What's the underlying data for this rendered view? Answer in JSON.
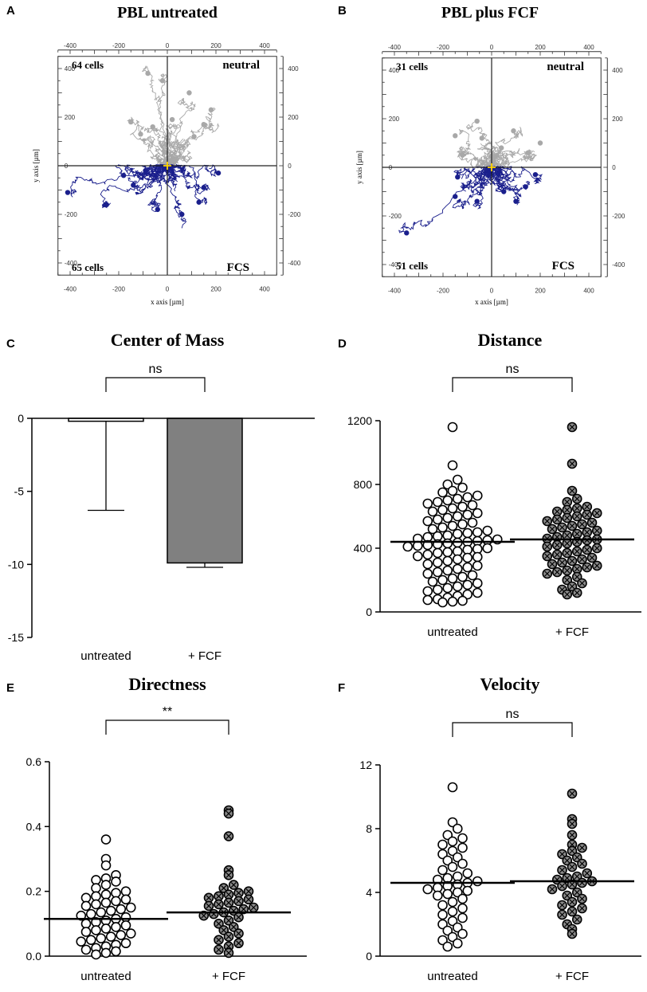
{
  "panels": {
    "A": {
      "letter": "A",
      "title": "PBL untreated",
      "top_left_count": "64 cells",
      "bottom_left_count": "65 cells",
      "top_right_label": "neutral",
      "bottom_right_label": "FCS",
      "xlabel": "x axis [µm]",
      "ylabel": "y axis [µm]"
    },
    "B": {
      "letter": "B",
      "title": "PBL plus FCF",
      "top_left_count": "31 cells",
      "bottom_left_count": "51 cells",
      "top_right_label": "neutral",
      "bottom_right_label": "FCS",
      "xlabel": "x axis [µm]",
      "ylabel": "y axis [µm]"
    },
    "C": {
      "letter": "C"
    },
    "D": {
      "letter": "D"
    },
    "E": {
      "letter": "E"
    },
    "F": {
      "letter": "F"
    }
  },
  "colors": {
    "neutral_tracks": "#a8a8a8",
    "fcs_tracks": "#1a1f8c",
    "bar_fcf": "#808080",
    "marker_fcf": "#8a8a8a",
    "center": "#ffd400"
  },
  "chart_data": [
    {
      "id": "A",
      "type": "scatter",
      "title": "PBL untreated",
      "xlabel": "x axis [µm]",
      "ylabel": "y axis [µm]",
      "xlim": [
        -450,
        450
      ],
      "ylim": [
        -450,
        450
      ],
      "xticks": [
        -400,
        -200,
        0,
        200,
        400
      ],
      "yticks": [
        -400,
        -200,
        0,
        200,
        400
      ],
      "series": [
        {
          "name": "neutral",
          "count": "64 cells",
          "endpoints": [
            [
              -80,
              380
            ],
            [
              -20,
              350
            ],
            [
              90,
              300
            ],
            [
              180,
              230
            ],
            [
              150,
              170
            ],
            [
              110,
              120
            ],
            [
              -150,
              180
            ],
            [
              -60,
              160
            ],
            [
              20,
              190
            ],
            [
              -110,
              130
            ]
          ]
        },
        {
          "name": "FCS",
          "count": "65 cells",
          "endpoints": [
            [
              -410,
              -110
            ],
            [
              -250,
              -160
            ],
            [
              -140,
              -80
            ],
            [
              -90,
              -20
            ],
            [
              210,
              -30
            ],
            [
              130,
              -150
            ],
            [
              60,
              -200
            ],
            [
              -40,
              -180
            ],
            [
              150,
              -90
            ],
            [
              -180,
              -40
            ]
          ]
        }
      ]
    },
    {
      "id": "B",
      "type": "scatter",
      "title": "PBL plus FCF",
      "xlabel": "x axis [µm]",
      "ylabel": "y axis [µm]",
      "xlim": [
        -450,
        450
      ],
      "ylim": [
        -450,
        450
      ],
      "xticks": [
        -400,
        -200,
        0,
        200,
        400
      ],
      "yticks": [
        -400,
        -200,
        0,
        200,
        400
      ],
      "series": [
        {
          "name": "neutral",
          "count": "31 cells",
          "endpoints": [
            [
              -150,
              130
            ],
            [
              -60,
              190
            ],
            [
              90,
              150
            ],
            [
              200,
              100
            ],
            [
              -120,
              50
            ],
            [
              40,
              80
            ],
            [
              150,
              60
            ],
            [
              -40,
              120
            ]
          ]
        },
        {
          "name": "FCS",
          "count": "51 cells",
          "endpoints": [
            [
              -350,
              -270
            ],
            [
              -150,
              -120
            ],
            [
              50,
              -100
            ],
            [
              180,
              -30
            ],
            [
              100,
              -140
            ],
            [
              -60,
              -140
            ],
            [
              140,
              -80
            ],
            [
              -140,
              -40
            ]
          ]
        }
      ]
    },
    {
      "id": "C",
      "type": "bar",
      "title": "Center of Mass",
      "categories": [
        "untreated",
        "+ FCF"
      ],
      "values": [
        -0.2,
        -9.9
      ],
      "errors": [
        6.1,
        0.3
      ],
      "ylim": [
        -15,
        0
      ],
      "yticks": [
        0,
        -5,
        -10,
        -15
      ],
      "significance": "ns"
    },
    {
      "id": "D",
      "type": "scatter",
      "title": "Distance",
      "categories": [
        "untreated",
        "+ FCF"
      ],
      "medians": [
        440,
        455
      ],
      "ylim": [
        0,
        1200
      ],
      "yticks": [
        0,
        400,
        800,
        1200
      ],
      "significance": "ns",
      "series": [
        {
          "name": "untreated",
          "values": [
            1160,
            920,
            830,
            800,
            780,
            760,
            750,
            730,
            720,
            710,
            700,
            690,
            680,
            670,
            660,
            650,
            640,
            630,
            620,
            610,
            600,
            590,
            580,
            570,
            560,
            550,
            540,
            530,
            520,
            510,
            500,
            495,
            490,
            480,
            475,
            470,
            460,
            455,
            450,
            445,
            440,
            435,
            430,
            425,
            420,
            415,
            410,
            400,
            395,
            390,
            380,
            375,
            370,
            360,
            350,
            345,
            340,
            330,
            320,
            310,
            300,
            290,
            280,
            270,
            260,
            250,
            240,
            230,
            220,
            210,
            200,
            190,
            180,
            170,
            160,
            150,
            140,
            130,
            120,
            110,
            100,
            90,
            80,
            75,
            70,
            65,
            60
          ]
        },
        {
          "name": "+ FCF",
          "values": [
            1160,
            930,
            760,
            710,
            690,
            660,
            650,
            640,
            630,
            620,
            610,
            600,
            590,
            580,
            570,
            560,
            550,
            540,
            530,
            520,
            510,
            500,
            490,
            480,
            470,
            460,
            455,
            450,
            440,
            430,
            420,
            410,
            400,
            390,
            380,
            370,
            360,
            350,
            340,
            330,
            320,
            310,
            300,
            290,
            280,
            270,
            260,
            250,
            240,
            220,
            200,
            180,
            160,
            140,
            120,
            110
          ]
        }
      ]
    },
    {
      "id": "E",
      "type": "scatter",
      "title": "Directness",
      "categories": [
        "untreated",
        "+ FCF"
      ],
      "medians": [
        0.115,
        0.135
      ],
      "ylim": [
        0,
        0.6
      ],
      "yticks": [
        0.0,
        0.2,
        0.4,
        0.6
      ],
      "significance": "**",
      "series": [
        {
          "name": "untreated",
          "values": [
            0.36,
            0.3,
            0.28,
            0.25,
            0.24,
            0.235,
            0.23,
            0.22,
            0.21,
            0.2,
            0.195,
            0.19,
            0.185,
            0.18,
            0.175,
            0.17,
            0.165,
            0.16,
            0.155,
            0.15,
            0.145,
            0.14,
            0.135,
            0.13,
            0.125,
            0.12,
            0.115,
            0.11,
            0.105,
            0.1,
            0.095,
            0.09,
            0.085,
            0.08,
            0.075,
            0.07,
            0.065,
            0.06,
            0.055,
            0.05,
            0.045,
            0.04,
            0.035,
            0.03,
            0.025,
            0.02,
            0.015,
            0.01,
            0.005
          ]
        },
        {
          "name": "+ FCF",
          "values": [
            0.45,
            0.44,
            0.37,
            0.265,
            0.25,
            0.22,
            0.21,
            0.2,
            0.195,
            0.19,
            0.185,
            0.18,
            0.175,
            0.17,
            0.165,
            0.16,
            0.155,
            0.15,
            0.145,
            0.14,
            0.135,
            0.13,
            0.125,
            0.12,
            0.11,
            0.1,
            0.09,
            0.08,
            0.07,
            0.06,
            0.05,
            0.04,
            0.03,
            0.02,
            0.01
          ]
        }
      ]
    },
    {
      "id": "F",
      "type": "scatter",
      "title": "Velocity",
      "categories": [
        "untreated",
        "+ FCF"
      ],
      "medians": [
        4.6,
        4.7
      ],
      "ylim": [
        0,
        12
      ],
      "yticks": [
        0,
        4,
        8,
        12
      ],
      "significance": "ns",
      "series": [
        {
          "name": "untreated",
          "values": [
            10.6,
            8.4,
            8.0,
            7.6,
            7.4,
            7.2,
            7.0,
            6.8,
            6.6,
            6.4,
            6.2,
            6.0,
            5.8,
            5.6,
            5.4,
            5.2,
            5.0,
            4.9,
            4.8,
            4.7,
            4.6,
            4.5,
            4.4,
            4.3,
            4.2,
            4.1,
            4.0,
            3.9,
            3.8,
            3.6,
            3.4,
            3.2,
            3.0,
            2.8,
            2.6,
            2.4,
            2.2,
            2.0,
            1.8,
            1.6,
            1.4,
            1.2,
            1.0,
            0.8,
            0.6
          ]
        },
        {
          "name": "+ FCF",
          "values": [
            10.2,
            8.6,
            8.3,
            7.6,
            7.0,
            6.8,
            6.6,
            6.4,
            6.2,
            6.0,
            5.8,
            5.6,
            5.4,
            5.2,
            5.0,
            4.9,
            4.8,
            4.7,
            4.6,
            4.5,
            4.4,
            4.2,
            4.0,
            3.8,
            3.6,
            3.4,
            3.2,
            3.0,
            2.8,
            2.6,
            2.3,
            2.0,
            1.7,
            1.4
          ]
        }
      ]
    }
  ]
}
